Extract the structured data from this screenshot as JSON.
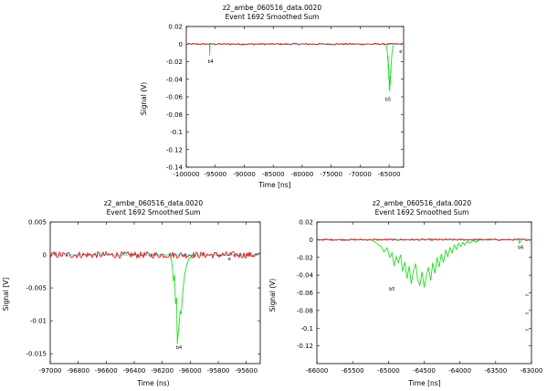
{
  "chart_data": [
    {
      "type": "line",
      "title": "z2_ambe_060516_data.0020",
      "subtitle": "Event 1692    Smoothed Sum",
      "xlabel": "Time [ns]",
      "ylabel": "Signal (V)",
      "xlim": [
        -100000,
        -62500
      ],
      "ylim": [
        -0.14,
        0.02
      ],
      "xticks": [
        -100000,
        -95000,
        -90000,
        -85000,
        -80000,
        -75000,
        -70000,
        -65000
      ],
      "xtick_labels": [
        "-100000",
        "-95000",
        "-90000",
        "-85000",
        "-80000",
        "-75000",
        "-70000",
        "-65000"
      ],
      "yticks": [
        0.02,
        0,
        -0.02,
        -0.04,
        -0.06,
        -0.08,
        -0.1,
        -0.12,
        -0.14
      ],
      "ytick_labels": [
        "0.02",
        "0",
        "-0.02",
        "-0.04",
        "-0.06",
        "-0.08",
        "-0.1",
        "-0.12",
        "-0.14"
      ],
      "grid": false,
      "series": [
        {
          "role": "baseline",
          "color": "#00e5e5",
          "style": "solid",
          "x": [
            -100000,
            -62500
          ],
          "y": [
            0,
            0
          ]
        },
        {
          "role": "signal",
          "color": "#e00000",
          "x": [
            -100000,
            -62500
          ],
          "y": [
            0,
            0
          ],
          "noise_amplitude": 0.001
        },
        {
          "role": "pulse",
          "color": "#22dd22",
          "x": [
            -96000,
            -95980,
            -95960,
            -95930,
            -95900,
            -95880
          ],
          "y": [
            0,
            -0.004,
            -0.013,
            -0.006,
            -0.001,
            0
          ]
        },
        {
          "role": "pulse",
          "color": "#22dd22",
          "x": [
            -65500,
            -65420,
            -65350,
            -65280,
            -65220,
            -65180,
            -65140,
            -65100,
            -65060,
            -65020,
            -64980,
            -64940,
            -64900,
            -64860,
            -64820,
            -64780,
            -64740,
            -64700,
            -64650,
            -64600,
            -64540,
            -64480,
            -64420,
            -64360,
            -64300,
            -64240
          ],
          "y": [
            0,
            -0.003,
            -0.008,
            -0.012,
            -0.02,
            -0.013,
            -0.03,
            -0.022,
            -0.04,
            -0.03,
            -0.052,
            -0.038,
            -0.054,
            -0.045,
            -0.036,
            -0.046,
            -0.028,
            -0.034,
            -0.022,
            -0.018,
            -0.012,
            -0.009,
            -0.006,
            -0.004,
            -0.002,
            0
          ]
        }
      ],
      "annotations": [
        {
          "text": "b4",
          "x": -95800,
          "y": -0.0215
        },
        {
          "text": "b5",
          "x": -65200,
          "y": -0.0645
        },
        {
          "text": "e",
          "x": -63000,
          "y": -0.01
        }
      ]
    },
    {
      "type": "line",
      "title": "z2_ambe_060516_data.0020",
      "subtitle": "Event 1692    Smoothed Sum",
      "xlabel": "Time (ns)",
      "ylabel": "Signal [V]",
      "xlim": [
        -97000,
        -95500
      ],
      "ylim": [
        -0.0165,
        0.005
      ],
      "xticks": [
        -97000,
        -96800,
        -96600,
        -96400,
        -96200,
        -96000,
        -95800,
        -95600
      ],
      "xtick_labels": [
        "-97000",
        "-96800",
        "-96600",
        "-96400",
        "-96200",
        "-96000",
        "-95800",
        "-95600"
      ],
      "yticks": [
        0.005,
        0,
        -0.005,
        -0.01,
        -0.015
      ],
      "ytick_labels": [
        "0.005",
        "0",
        "-0.005",
        "-0.01",
        "-0.015"
      ],
      "grid": false,
      "series": [
        {
          "role": "baseline",
          "color": "#00e5e5",
          "style": "solid",
          "x": [
            -97000,
            -95500
          ],
          "y": [
            0,
            0
          ]
        },
        {
          "role": "signal",
          "color": "#e00000",
          "x": [
            -97000,
            -95500
          ],
          "y": [
            0,
            0
          ],
          "noise_amplitude": 0.0005
        },
        {
          "role": "pulse",
          "color": "#22dd22",
          "x": [
            -96140,
            -96130,
            -96120,
            -96112,
            -96105,
            -96098,
            -96092,
            -96086,
            -96080,
            -96072,
            -96064,
            -96056,
            -96048,
            -96040,
            -96030,
            -96020,
            -96010,
            -96000,
            -95990,
            -95980
          ],
          "y": [
            0,
            -0.0015,
            -0.004,
            -0.003,
            -0.0075,
            -0.0065,
            -0.0135,
            -0.012,
            -0.0105,
            -0.0085,
            -0.009,
            -0.0065,
            -0.0045,
            -0.003,
            -0.002,
            -0.0012,
            -0.0006,
            -0.0004,
            -0.0002,
            0
          ]
        }
      ],
      "annotations": [
        {
          "text": "b4",
          "x": -96080,
          "y": -0.0143
        },
        {
          "text": "e",
          "x": -95720,
          "y": -0.0008
        }
      ]
    },
    {
      "type": "line",
      "title": "z2_ambe_060516_data.0020",
      "subtitle": "Event 1692    Smoothed Sum",
      "xlabel": "Time [ns]",
      "ylabel": "Signal (V)",
      "xlim": [
        -66000,
        -63000
      ],
      "ylim": [
        -0.14,
        0.02
      ],
      "xticks": [
        -66000,
        -65500,
        -65000,
        -64500,
        -64000,
        -63500,
        -63000
      ],
      "xtick_labels": [
        "-66000",
        "-65500",
        "-65000",
        "-64500",
        "-64000",
        "-63500",
        "-63000"
      ],
      "yticks": [
        0.02,
        0,
        -0.02,
        -0.04,
        -0.06,
        -0.08,
        -0.1,
        -0.12
      ],
      "ytick_labels": [
        "0.02",
        "0",
        "-0.02",
        "-0.04",
        "-0.06",
        "-0.08",
        "-0.1",
        "-0.12"
      ],
      "grid": false,
      "series": [
        {
          "role": "baseline",
          "color": "#00e5e5",
          "style": "solid",
          "x": [
            -66000,
            -63000
          ],
          "y": [
            0,
            0
          ]
        },
        {
          "role": "signal",
          "color": "#e00000",
          "x": [
            -66000,
            -63000
          ],
          "y": [
            0,
            0
          ],
          "noise_amplitude": 0.001
        },
        {
          "role": "pulse",
          "color": "#22dd22",
          "x": [
            -65250,
            -65200,
            -65150,
            -65100,
            -65060,
            -65020,
            -64980,
            -64950,
            -64920,
            -64890,
            -64860,
            -64830,
            -64800,
            -64770,
            -64740,
            -64710,
            -64680,
            -64650,
            -64620,
            -64590,
            -64560,
            -64530,
            -64500,
            -64470,
            -64440,
            -64410,
            -64380,
            -64350,
            -64320,
            -64290,
            -64260,
            -64230,
            -64200,
            -64170,
            -64140,
            -64110,
            -64080,
            -64050,
            -64020,
            -63990,
            -63960,
            -63930,
            -63900,
            -63860,
            -63820,
            -63780,
            -63740,
            -63700
          ],
          "y": [
            0,
            -0.002,
            -0.005,
            -0.008,
            -0.014,
            -0.009,
            -0.02,
            -0.015,
            -0.03,
            -0.019,
            -0.026,
            -0.017,
            -0.036,
            -0.025,
            -0.044,
            -0.03,
            -0.05,
            -0.035,
            -0.027,
            -0.045,
            -0.052,
            -0.036,
            -0.054,
            -0.041,
            -0.031,
            -0.046,
            -0.026,
            -0.038,
            -0.02,
            -0.031,
            -0.016,
            -0.026,
            -0.012,
            -0.019,
            -0.009,
            -0.015,
            -0.006,
            -0.011,
            -0.004,
            -0.008,
            -0.003,
            -0.006,
            -0.002,
            -0.004,
            -0.001,
            -0.003,
            -0.001,
            0
          ]
        },
        {
          "role": "pulse",
          "color": "#22dd22",
          "x": [
            -63180,
            -63170,
            -63160,
            -63150
          ],
          "y": [
            0,
            -0.004,
            -0.003,
            0
          ]
        }
      ],
      "annotations": [
        {
          "text": "b5",
          "x": -64950,
          "y": -0.0575
        },
        {
          "text": "b6",
          "x": -63150,
          "y": -0.0105
        }
      ]
    }
  ]
}
